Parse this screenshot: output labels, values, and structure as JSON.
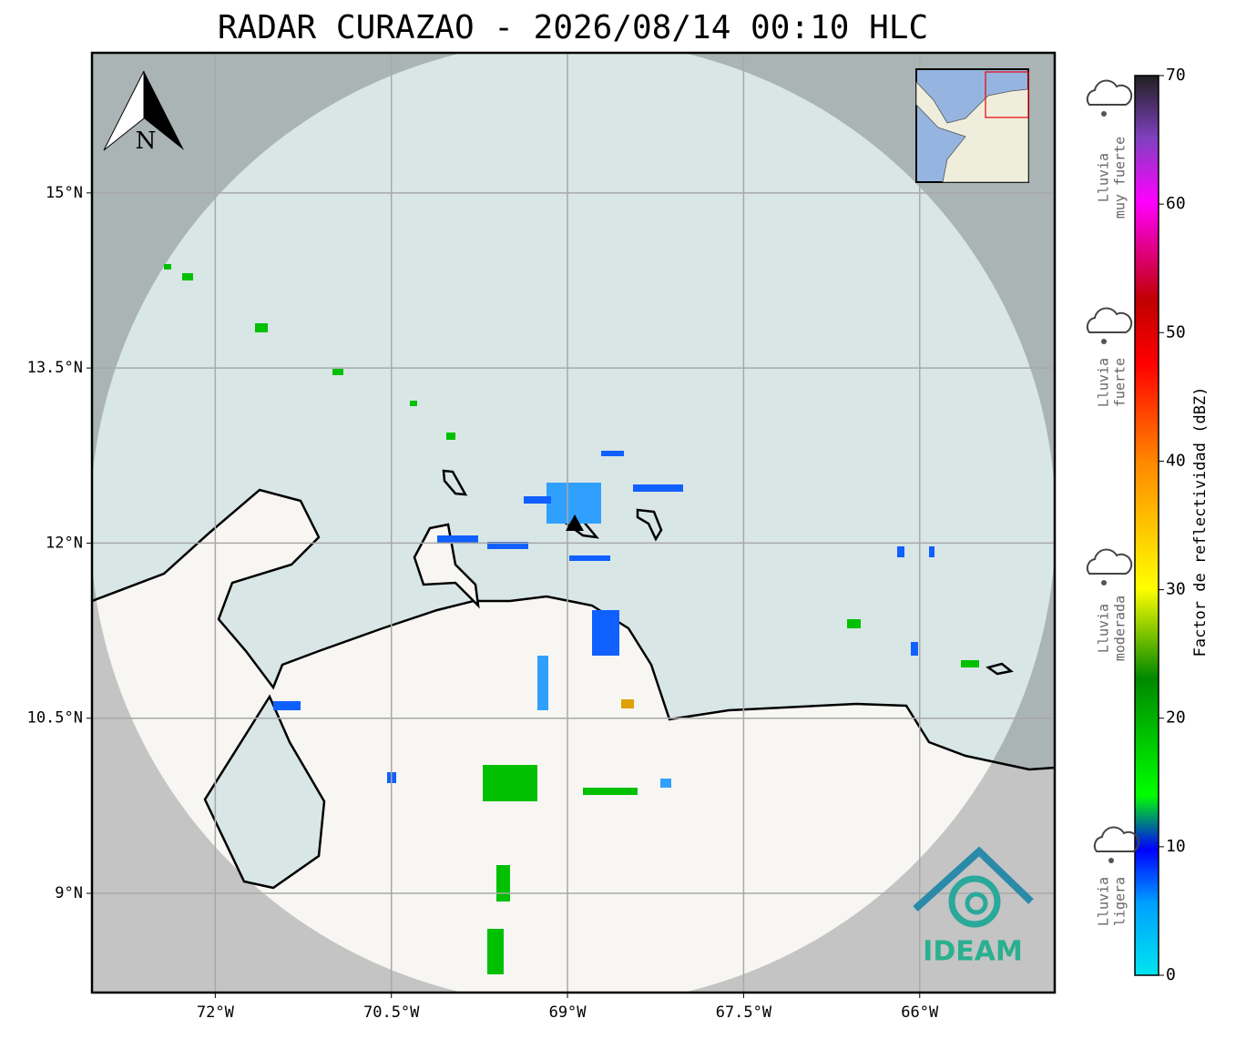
{
  "title": "RADAR CURAZAO - 2026/08/14 00:10 HLC",
  "map": {
    "xlim": [
      -73.05,
      -64.85
    ],
    "ylim": [
      8.15,
      16.2
    ],
    "xticks": [
      {
        "value": -72,
        "label": "72°W"
      },
      {
        "value": -70.5,
        "label": "70.5°W"
      },
      {
        "value": -69,
        "label": "69°W"
      },
      {
        "value": -67.5,
        "label": "67.5°W"
      },
      {
        "value": -66,
        "label": "66°W"
      }
    ],
    "yticks": [
      {
        "value": 15,
        "label": "15°N"
      },
      {
        "value": 13.5,
        "label": "13.5°N"
      },
      {
        "value": 12,
        "label": "12°N"
      },
      {
        "value": 10.5,
        "label": "10.5°N"
      },
      {
        "value": 9,
        "label": "9°N"
      }
    ],
    "north": "N",
    "logo": "IDEAM"
  },
  "legend": [
    {
      "lines": [
        "Lluvia",
        "muy fuerte"
      ]
    },
    {
      "lines": [
        "Lluvia",
        "fuerte"
      ]
    },
    {
      "lines": [
        "Lluvia",
        "moderada"
      ]
    },
    {
      "lines": [
        "Lluvia",
        "ligera"
      ]
    }
  ],
  "colorbar": {
    "label": "Factor de reflectividad (dBZ)",
    "range": [
      0,
      70
    ],
    "ticks": [
      0,
      10,
      20,
      30,
      40,
      50,
      60,
      70
    ]
  }
}
